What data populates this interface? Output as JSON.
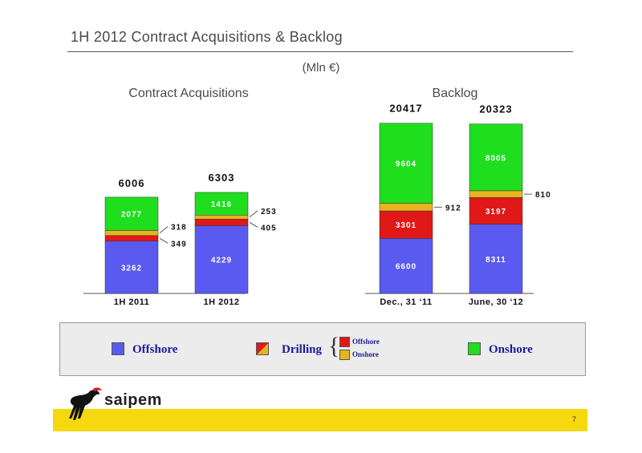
{
  "page": {
    "title": "1H 2012 Contract Acquisitions & Backlog",
    "unit": "(Mln €)",
    "page_number": "7"
  },
  "brand": {
    "name": "saipem"
  },
  "colors": {
    "offshore": "#5a5af0",
    "drilling_offshore": "#e01818",
    "drilling_onshore": "#e8b41e",
    "onshore": "#1ede1e"
  },
  "legend": {
    "offshore": "Offshore",
    "drilling": "Drilling",
    "drilling_offshore": "Offshore",
    "drilling_onshore": "Onshore",
    "onshore": "Onshore"
  },
  "chart_data": [
    {
      "type": "bar",
      "stacked": true,
      "title": "Contract Acquisitions",
      "categories": [
        "1H 2011",
        "1H 2012"
      ],
      "totals": [
        6006,
        6303
      ],
      "series": [
        {
          "name": "Offshore",
          "values": [
            3262,
            4229
          ]
        },
        {
          "name": "Drilling Offshore",
          "values": [
            349,
            405
          ]
        },
        {
          "name": "Drilling Onshore",
          "values": [
            318,
            253
          ]
        },
        {
          "name": "Onshore",
          "values": [
            2077,
            1416
          ]
        }
      ]
    },
    {
      "type": "bar",
      "stacked": true,
      "title": "Backlog",
      "categories": [
        "Dec., 31 ‘11",
        "June, 30 ‘12"
      ],
      "totals": [
        20417,
        20323
      ],
      "series": [
        {
          "name": "Offshore",
          "values": [
            6600,
            8311
          ]
        },
        {
          "name": "Drilling Offshore",
          "values": [
            3301,
            3197
          ]
        },
        {
          "name": "Drilling Onshore",
          "values": [
            912,
            810
          ]
        },
        {
          "name": "Onshore",
          "values": [
            9604,
            8005
          ]
        }
      ]
    }
  ]
}
